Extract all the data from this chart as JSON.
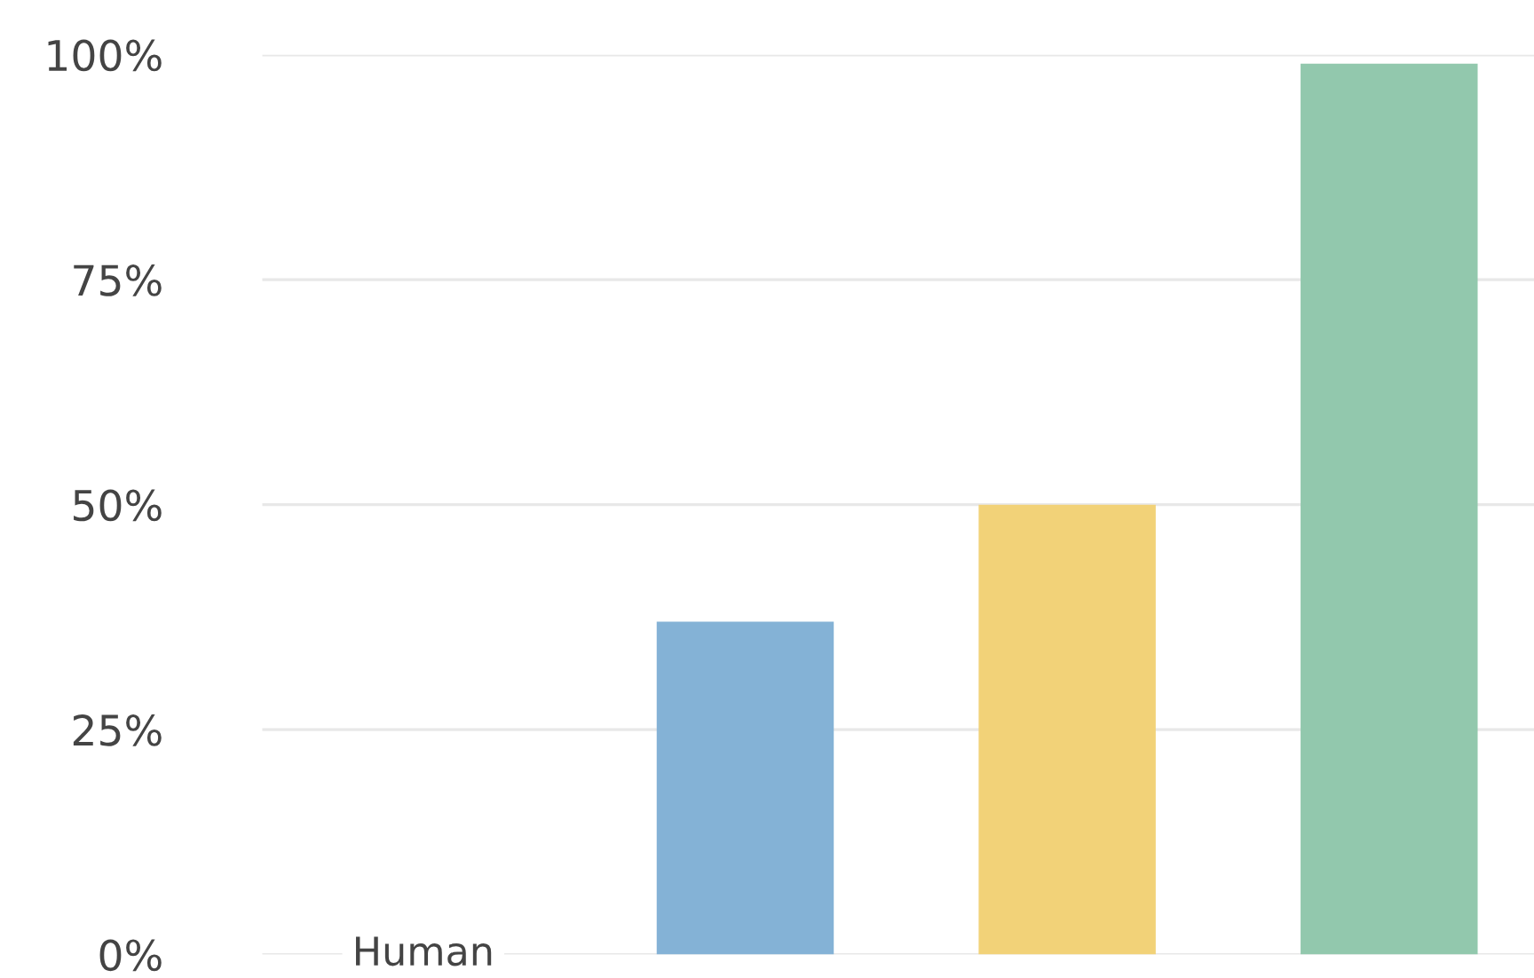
{
  "chart_data": {
    "type": "bar",
    "categories": [
      "Human",
      null,
      null,
      null
    ],
    "values": [
      null,
      37,
      50,
      99
    ],
    "colors": [
      "#84b2d6",
      "#84b2d6",
      "#f2d278",
      "#92c8ad"
    ],
    "ylim": [
      0,
      100
    ],
    "yticks": [
      {
        "value": 0,
        "label": "0%"
      },
      {
        "value": 25,
        "label": "25%"
      },
      {
        "value": 50,
        "label": "50%"
      },
      {
        "value": 75,
        "label": "75%"
      },
      {
        "value": 100,
        "label": "100%"
      }
    ],
    "grid": "y"
  }
}
